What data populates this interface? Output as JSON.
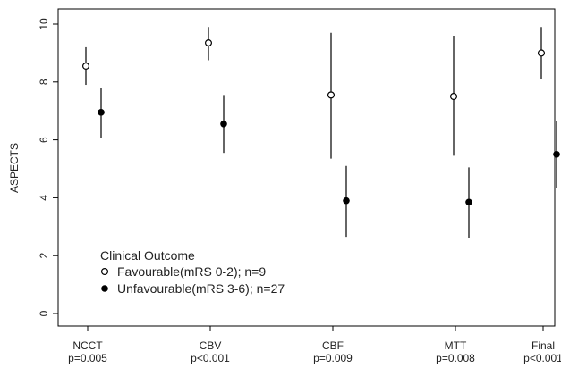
{
  "chart_data": {
    "type": "scatter",
    "ylabel": "ASPECTS",
    "ylim": [
      0,
      10
    ],
    "yticks": [
      0,
      2,
      4,
      6,
      8,
      10
    ],
    "categories": [
      "NCCT",
      "CBV",
      "CBF",
      "MTT",
      "Final"
    ],
    "category_pvalues": [
      "p=0.005",
      "p<0.001",
      "p=0.009",
      "p=0.008",
      "p<0.001"
    ],
    "grid": false,
    "legend_placement": "bottom-left",
    "legend_title": "Clinical Outcome",
    "series": [
      {
        "name": "Favourable(mRS 0-2); n=9",
        "marker": "open-circle",
        "values": [
          8.55,
          9.35,
          7.55,
          7.5,
          9.0
        ],
        "lower": [
          7.9,
          8.75,
          5.35,
          5.45,
          8.1
        ],
        "upper": [
          9.2,
          9.9,
          9.7,
          9.6,
          9.9
        ]
      },
      {
        "name": "Unfavourable(mRS 3-6); n=27",
        "marker": "filled-circle",
        "values": [
          6.95,
          6.55,
          3.9,
          3.85,
          5.5
        ],
        "lower": [
          6.05,
          5.55,
          2.65,
          2.6,
          4.35
        ],
        "upper": [
          7.8,
          7.55,
          5.1,
          5.05,
          6.65
        ]
      }
    ]
  }
}
